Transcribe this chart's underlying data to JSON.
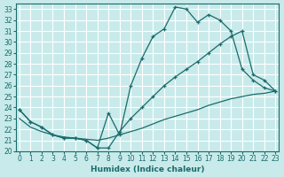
{
  "xlabel": "Humidex (Indice chaleur)",
  "bg_color": "#c8eaea",
  "grid_color": "#ffffff",
  "line_color": "#1a6b6b",
  "xlim": [
    -0.3,
    23.3
  ],
  "ylim": [
    20,
    33.5
  ],
  "xticks": [
    0,
    1,
    2,
    3,
    4,
    5,
    6,
    7,
    8,
    9,
    10,
    11,
    12,
    13,
    14,
    15,
    16,
    17,
    18,
    19,
    20,
    21,
    22,
    23
  ],
  "yticks": [
    20,
    21,
    22,
    23,
    24,
    25,
    26,
    27,
    28,
    29,
    30,
    31,
    32,
    33
  ],
  "line1_x": [
    0,
    1,
    2,
    3,
    4,
    5,
    6,
    7,
    8,
    9,
    10,
    11,
    12,
    13,
    14,
    15,
    16,
    17,
    18,
    19,
    20,
    21,
    22,
    23
  ],
  "line1_y": [
    23.8,
    22.7,
    22.2,
    21.5,
    21.2,
    21.2,
    21.0,
    20.3,
    23.5,
    21.5,
    26.0,
    28.5,
    30.5,
    31.2,
    33.2,
    33.0,
    31.8,
    32.5,
    32.0,
    31.0,
    27.5,
    26.5,
    25.8,
    25.5
  ],
  "line2_x": [
    0,
    1,
    2,
    3,
    4,
    5,
    6,
    7,
    8,
    9,
    10,
    11,
    12,
    13,
    14,
    15,
    16,
    17,
    18,
    19,
    20,
    21,
    22,
    23
  ],
  "line2_y": [
    23.8,
    22.7,
    22.2,
    21.5,
    21.2,
    21.2,
    21.0,
    20.3,
    20.3,
    21.8,
    23.0,
    24.0,
    25.0,
    26.0,
    26.8,
    27.5,
    28.2,
    29.0,
    29.8,
    30.5,
    31.0,
    27.0,
    26.5,
    25.5
  ],
  "line3_x": [
    0,
    1,
    2,
    3,
    4,
    5,
    6,
    7,
    8,
    9,
    10,
    11,
    12,
    13,
    14,
    15,
    16,
    17,
    18,
    19,
    20,
    21,
    22,
    23
  ],
  "line3_y": [
    23.0,
    22.2,
    21.8,
    21.5,
    21.3,
    21.2,
    21.1,
    21.0,
    21.2,
    21.5,
    21.8,
    22.1,
    22.5,
    22.9,
    23.2,
    23.5,
    23.8,
    24.2,
    24.5,
    24.8,
    25.0,
    25.2,
    25.3,
    25.5
  ]
}
